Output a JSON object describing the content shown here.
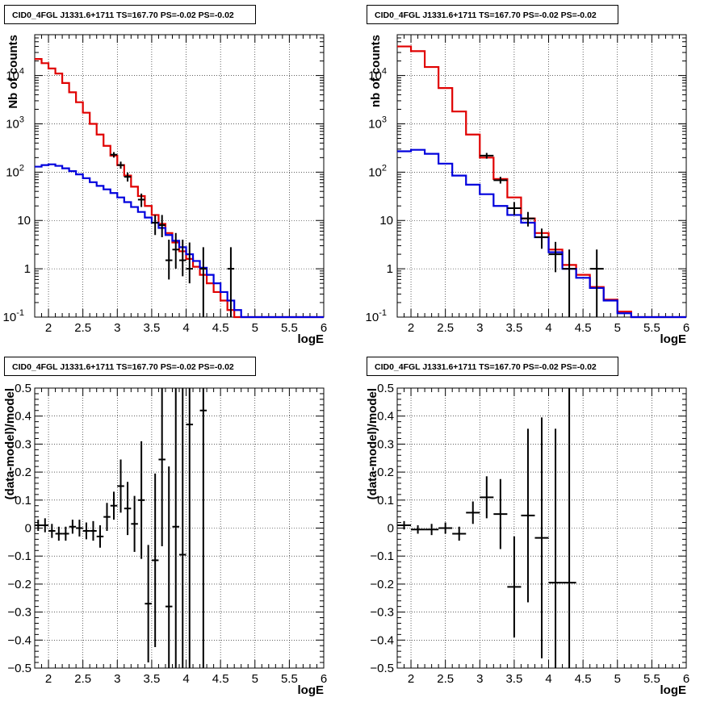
{
  "chart_data": [
    {
      "type": "line",
      "title": "CID0_4FGL J1331.6+1711 TS=167.70 PS=-0.02 PS=-0.02",
      "xlabel": "logE",
      "ylabel": "Nb of counts",
      "log_y": true,
      "xlim": [
        1.8,
        6.0
      ],
      "ylim": [
        0.1,
        70000
      ],
      "grid": true,
      "x_tick_labels": [
        "2",
        "2.5",
        "3",
        "3.5",
        "4",
        "4.5",
        "5",
        "5.5",
        "6"
      ],
      "y_tick_labels": [
        "10^-1",
        "1",
        "10",
        "10^2",
        "10^3",
        "10^4"
      ],
      "bin_edges": [
        1.8,
        1.9,
        2.0,
        2.1,
        2.2,
        2.3,
        2.4,
        2.5,
        2.6,
        2.7,
        2.8,
        2.9,
        3.0,
        3.1,
        3.2,
        3.3,
        3.4,
        3.5,
        3.6,
        3.7,
        3.8,
        3.9,
        4.0,
        4.1,
        4.2,
        4.3,
        4.4,
        4.5,
        4.6,
        4.7,
        4.8,
        4.9,
        5.0,
        5.1,
        5.2,
        5.3,
        5.4,
        5.5,
        5.6,
        5.7,
        5.8,
        5.9,
        6.0
      ],
      "series": [
        {
          "color": "#e00000",
          "style": "step",
          "values": [
            22000,
            18000,
            14000,
            11000,
            7000,
            4500,
            2800,
            1700,
            1000,
            600,
            350,
            220,
            140,
            85,
            50,
            32,
            20,
            13,
            8.5,
            5.5,
            3.5,
            2.3,
            1.6,
            1.1,
            0.75,
            0.5,
            0.33,
            0.22,
            0.14,
            0.1,
            0.1,
            0.1,
            0.1,
            0.1,
            0.1,
            0.1,
            0.1,
            0.1,
            0.1,
            0.1,
            0.1,
            0.1
          ]
        },
        {
          "color": "#0000dd",
          "style": "step",
          "values": [
            130,
            140,
            145,
            135,
            120,
            105,
            90,
            75,
            62,
            52,
            44,
            37,
            30,
            24,
            19,
            15,
            11.5,
            9,
            7,
            5,
            3.8,
            2.8,
            2.0,
            1.45,
            1.05,
            0.75,
            0.5,
            0.33,
            0.22,
            0.14,
            0.1,
            0.1,
            0.1,
            0.1,
            0.1,
            0.1,
            0.1,
            0.1,
            0.1,
            0.1,
            0.1,
            0.1
          ]
        },
        {
          "color": "#000000",
          "style": "points",
          "points": [
            {
              "x": 2.95,
              "y": 230,
              "lo": 200,
              "hi": 260
            },
            {
              "x": 3.05,
              "y": 140,
              "lo": 118,
              "hi": 165
            },
            {
              "x": 3.15,
              "y": 80,
              "lo": 64,
              "hi": 98
            },
            {
              "x": 3.35,
              "y": 27,
              "lo": 19,
              "hi": 36
            },
            {
              "x": 3.55,
              "y": 9,
              "lo": 5,
              "hi": 13
            },
            {
              "x": 3.65,
              "y": 8,
              "lo": 4.5,
              "hi": 13
            },
            {
              "x": 3.75,
              "y": 1.5,
              "lo": 0.6,
              "hi": 4
            },
            {
              "x": 3.85,
              "y": 2.5,
              "lo": 1,
              "hi": 5.5
            },
            {
              "x": 3.95,
              "y": 1.5,
              "lo": 0.7,
              "hi": 4
            },
            {
              "x": 4.05,
              "y": 1,
              "lo": 0.5,
              "hi": 3.5
            },
            {
              "x": 4.25,
              "y": 1,
              "lo": 0.1,
              "hi": 2.8
            },
            {
              "x": 4.65,
              "y": 1,
              "lo": 0.1,
              "hi": 2.8
            }
          ]
        }
      ]
    },
    {
      "type": "line",
      "title": "CID0_4FGL J1331.6+1711 TS=167.70 PS=-0.02 PS=-0.02",
      "xlabel": "logE",
      "ylabel": "nb of counts",
      "log_y": true,
      "xlim": [
        1.8,
        6.0
      ],
      "ylim": [
        0.1,
        70000
      ],
      "grid": true,
      "x_tick_labels": [
        "2",
        "2.5",
        "3",
        "3.5",
        "4",
        "4.5",
        "5",
        "5.5",
        "6"
      ],
      "y_tick_labels": [
        "10^-1",
        "1",
        "10",
        "10^2",
        "10^3",
        "10^4"
      ],
      "bin_edges": [
        1.8,
        2.0,
        2.2,
        2.4,
        2.6,
        2.8,
        3.0,
        3.2,
        3.4,
        3.6,
        3.8,
        4.0,
        4.2,
        4.4,
        4.6,
        4.8,
        5.0,
        5.2,
        5.4,
        5.6,
        5.8,
        6.0
      ],
      "series": [
        {
          "color": "#e00000",
          "style": "step",
          "values": [
            40000,
            32000,
            15000,
            5500,
            1800,
            600,
            200,
            72,
            30,
            11,
            5.5,
            2.5,
            1.2,
            0.75,
            0.42,
            0.23,
            0.13,
            0.1,
            0.1,
            0.1,
            0.1
          ]
        },
        {
          "color": "#0000dd",
          "style": "step",
          "values": [
            270,
            290,
            240,
            150,
            85,
            55,
            35,
            20,
            13,
            9,
            4.5,
            2.2,
            1.0,
            0.65,
            0.4,
            0.22,
            0.12,
            0.1,
            0.1,
            0.1,
            0.1
          ]
        },
        {
          "color": "#000000",
          "style": "points",
          "points": [
            {
              "x": 3.1,
              "y": 220,
              "lo": 190,
              "hi": 250
            },
            {
              "x": 3.3,
              "y": 68,
              "lo": 58,
              "hi": 80
            },
            {
              "x": 3.5,
              "y": 18,
              "lo": 13,
              "hi": 24
            },
            {
              "x": 3.7,
              "y": 11,
              "lo": 7.5,
              "hi": 15
            },
            {
              "x": 3.9,
              "y": 4.5,
              "lo": 2.6,
              "hi": 6.8
            },
            {
              "x": 4.1,
              "y": 2,
              "lo": 0.85,
              "hi": 3.6
            },
            {
              "x": 4.3,
              "y": 1,
              "lo": 0.1,
              "hi": 2.5
            },
            {
              "x": 4.7,
              "y": 1,
              "lo": 0.1,
              "hi": 2.5
            }
          ]
        }
      ]
    },
    {
      "type": "scatter",
      "title": "CID0_4FGL J1331.6+1711 TS=167.70 PS=-0.02 PS=-0.02",
      "xlabel": "logE",
      "ylabel": "(data-model)/model",
      "xlim": [
        1.8,
        6.0
      ],
      "ylim": [
        -0.5,
        0.5
      ],
      "grid": true,
      "x_tick_labels": [
        "2",
        "2.5",
        "3",
        "3.5",
        "4",
        "4.5",
        "5",
        "5.5",
        "6"
      ],
      "y_tick_labels": [
        "-0.5",
        "-0.4",
        "-0.3",
        "-0.2",
        "-0.1",
        "0",
        "0.1",
        "0.2",
        "0.3",
        "0.4",
        "0.5"
      ],
      "bin_width": 0.1,
      "points": [
        {
          "x": 1.85,
          "y": 0.01,
          "err": 0.02
        },
        {
          "x": 1.95,
          "y": 0.01,
          "err": 0.025
        },
        {
          "x": 2.05,
          "y": -0.01,
          "err": 0.025
        },
        {
          "x": 2.15,
          "y": -0.02,
          "err": 0.025
        },
        {
          "x": 2.25,
          "y": -0.02,
          "err": 0.025
        },
        {
          "x": 2.35,
          "y": 0.005,
          "err": 0.025
        },
        {
          "x": 2.45,
          "y": 0.0,
          "err": 0.03
        },
        {
          "x": 2.55,
          "y": -0.01,
          "err": 0.03
        },
        {
          "x": 2.65,
          "y": -0.01,
          "err": 0.035
        },
        {
          "x": 2.75,
          "y": -0.03,
          "err": 0.04
        },
        {
          "x": 2.85,
          "y": 0.04,
          "err": 0.05
        },
        {
          "x": 2.95,
          "y": 0.08,
          "err": 0.05
        },
        {
          "x": 3.05,
          "y": 0.15,
          "err": 0.095
        },
        {
          "x": 3.15,
          "y": 0.07,
          "err": 0.095
        },
        {
          "x": 3.25,
          "y": 0.015,
          "err": 0.1
        },
        {
          "x": 3.35,
          "y": 0.1,
          "err": 0.21
        },
        {
          "x": 3.45,
          "y": -0.27,
          "err": 0.21
        },
        {
          "x": 3.55,
          "y": -0.115,
          "err": 0.31
        },
        {
          "x": 3.65,
          "y": 0.245,
          "err": 0.31
        },
        {
          "x": 3.75,
          "y": -0.28,
          "err": 0.5
        },
        {
          "x": 3.85,
          "y": 0.005,
          "err": 0.53
        },
        {
          "x": 3.95,
          "y": -0.095,
          "err": 0.6
        },
        {
          "x": 4.05,
          "y": 0.37,
          "err": 0.9
        },
        {
          "x": 4.25,
          "y": 0.42,
          "err": 0.95
        }
      ]
    },
    {
      "type": "scatter",
      "title": "CID0_4FGL J1331.6+1711 TS=167.70 PS=-0.02 PS=-0.02",
      "xlabel": "logE",
      "ylabel": "(data-model)/model",
      "xlim": [
        1.8,
        6.0
      ],
      "ylim": [
        -0.5,
        0.5
      ],
      "grid": true,
      "x_tick_labels": [
        "2",
        "2.5",
        "3",
        "3.5",
        "4",
        "4.5",
        "5",
        "5.5",
        "6"
      ],
      "y_tick_labels": [
        "-0.5",
        "-0.4",
        "-0.3",
        "-0.2",
        "-0.1",
        "0",
        "0.1",
        "0.2",
        "0.3",
        "0.4",
        "0.5"
      ],
      "bin_width": 0.2,
      "points": [
        {
          "x": 1.9,
          "y": 0.01,
          "err": 0.015
        },
        {
          "x": 2.1,
          "y": -0.005,
          "err": 0.015
        },
        {
          "x": 2.3,
          "y": -0.005,
          "err": 0.02
        },
        {
          "x": 2.5,
          "y": 0.0,
          "err": 0.02
        },
        {
          "x": 2.7,
          "y": -0.02,
          "err": 0.025
        },
        {
          "x": 2.9,
          "y": 0.055,
          "err": 0.04
        },
        {
          "x": 3.1,
          "y": 0.11,
          "err": 0.075
        },
        {
          "x": 3.3,
          "y": 0.05,
          "err": 0.125
        },
        {
          "x": 3.5,
          "y": -0.21,
          "err": 0.18
        },
        {
          "x": 3.7,
          "y": 0.045,
          "err": 0.31
        },
        {
          "x": 3.9,
          "y": -0.035,
          "err": 0.43
        },
        {
          "x": 4.1,
          "y": -0.195,
          "err": 0.55
        },
        {
          "x": 4.3,
          "y": -0.195,
          "err": 0.8
        }
      ]
    }
  ]
}
